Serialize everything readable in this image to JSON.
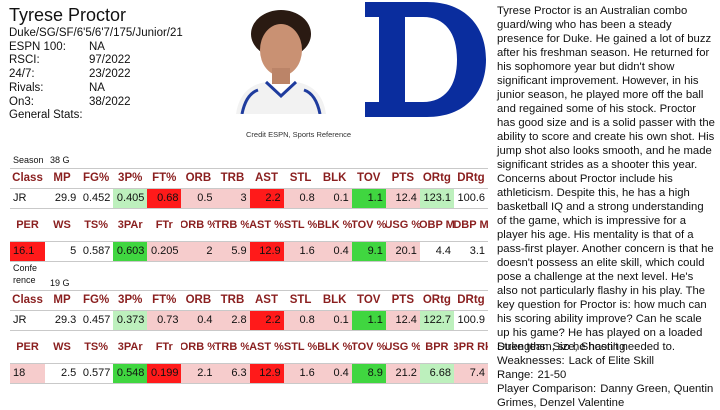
{
  "player": {
    "name": "Tyrese Proctor",
    "line": "Duke/SG/SF/6'5/6'7/175/Junior/21",
    "ranks": [
      {
        "k": "ESPN 100:",
        "v": "NA"
      },
      {
        "k": "RSCI:",
        "v": "97/2022"
      },
      {
        "k": "24/7:",
        "v": "23/2022"
      },
      {
        "k": "Rivals:",
        "v": "NA"
      },
      {
        "k": "On3:",
        "v": "38/2022"
      },
      {
        "k": "General Stats:",
        "v": ""
      }
    ]
  },
  "credit": "Credit ESPN, Sports Reference",
  "season": {
    "label": "Season",
    "games": "38 G",
    "header1": [
      "Class",
      "MP",
      "FG%",
      "3P%",
      "FT%",
      "ORB",
      "TRB",
      "AST",
      "STL",
      "BLK",
      "TOV",
      "PTS",
      "ORtg",
      "DRtg"
    ],
    "row1": [
      "JR",
      "29.9",
      "0.452",
      "0.405",
      "0.68",
      "0.5",
      "3",
      "2.2",
      "0.8",
      "0.1",
      "1.1",
      "12.4",
      "123.1",
      "100.6"
    ],
    "header2": [
      "PER",
      "WS",
      "TS%",
      "3PAr",
      "FTr",
      "ORB %",
      "TRB %",
      "AST %",
      "STL %",
      "BLK %",
      "TOV %",
      "USG %",
      "OBP M",
      "DBP M"
    ],
    "row2": [
      "16.1",
      "5",
      "0.587",
      "0.603",
      "0.205",
      "2",
      "5.9",
      "12.9",
      "1.6",
      "0.4",
      "9.1",
      "20.1",
      "4.4",
      "3.1"
    ]
  },
  "conference": {
    "label": "Confe rence",
    "games": "19 G",
    "header1": [
      "Class",
      "MP",
      "FG%",
      "3P%",
      "FT%",
      "ORB",
      "TRB",
      "AST",
      "STL",
      "BLK",
      "TOV",
      "PTS",
      "ORtg",
      "DRtg"
    ],
    "row1": [
      "JR",
      "29.3",
      "0.457",
      "0.373",
      "0.73",
      "0.4",
      "2.8",
      "2.2",
      "0.8",
      "0.1",
      "1.1",
      "12.4",
      "122.7",
      "100.9"
    ],
    "header2": [
      "PER",
      "WS",
      "TS%",
      "3PAr",
      "FTr",
      "ORB %",
      "TRB %",
      "AST %",
      "STL %",
      "BLK %",
      "TOV %",
      "USG %",
      "BPR",
      "BPR Rk"
    ],
    "row2": [
      "18",
      "2.5",
      "0.577",
      "0.548",
      "0.199",
      "2.1",
      "6.3",
      "12.9",
      "1.6",
      "0.4",
      "8.9",
      "21.2",
      "6.68",
      "7.4"
    ]
  },
  "description": "Tyrese Proctor is an Australian combo guard/wing who has been a steady presence for Duke. He gained a lot of buzz after his freshman season. He returned for his sophomore year but didn't show significant improvement. However, in his junior season, he played more off the ball and regained some of his stock. Proctor has good size and is a solid passer with the ability to score and create his own shot. His jump shot also looks smooth, and he made significant strides as a shooter this year. Concerns about Proctor include his athleticism. Despite this, he has a high basketball IQ and a strong understanding of the game, which is impressive for a player his age. His mentality is that of a pass-first player. Another concern is that he doesn't possess an elite skill, which could pose a challenge at the next level. He's also not particularly flashy in his play. The key question for Proctor is: how much can his scoring ability improve? Can he scale up his game? He has played on a loaded Duke team, so he hasn't needed to.",
  "summary": [
    {
      "k": "Strengths:",
      "v": "Size, Shooting"
    },
    {
      "k": "Weaknesses:",
      "v": "Lack of Elite Skill"
    },
    {
      "k": "Range:",
      "v": "21-50"
    },
    {
      "k": "Player Comparison:",
      "v": "Danny Green, Quentin"
    },
    {
      "k": "",
      "v": "Grimes, Denzel Valentine"
    }
  ],
  "colors": {
    "logo": "#0a2d9e",
    "header_text": "#8a1f1f",
    "green": "#40d640",
    "red": "#ff1a1a"
  }
}
